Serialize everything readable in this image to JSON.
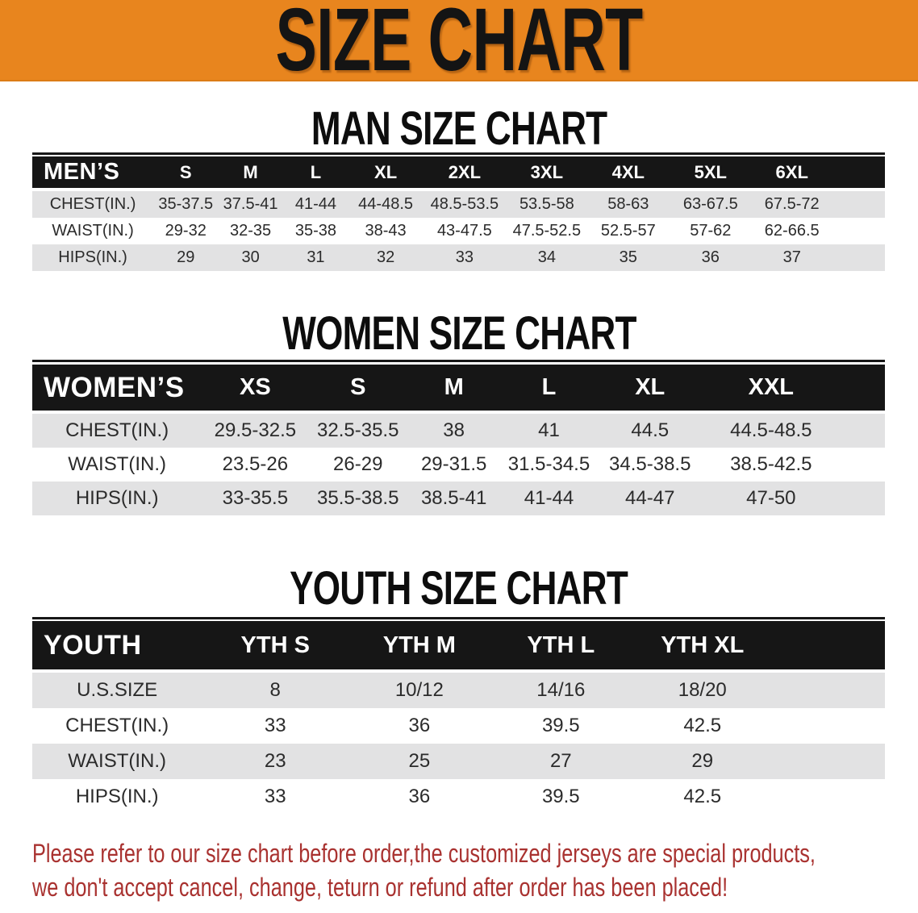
{
  "banner": {
    "title": "SIZE CHART"
  },
  "sections": {
    "men": {
      "heading": "MAN SIZE CHART",
      "header": [
        "MEN’S",
        "S",
        "M",
        "L",
        "XL",
        "2XL",
        "3XL",
        "4XL",
        "5XL",
        "6XL"
      ],
      "rows": [
        {
          "label": "CHEST(IN.)",
          "values": [
            "35-37.5",
            "37.5-41",
            "41-44",
            "44-48.5",
            "48.5-53.5",
            "53.5-58",
            "58-63",
            "63-67.5",
            "67.5-72"
          ]
        },
        {
          "label": "WAIST(IN.)",
          "values": [
            "29-32",
            "32-35",
            "35-38",
            "38-43",
            "43-47.5",
            "47.5-52.5",
            "52.5-57",
            "57-62",
            "62-66.5"
          ]
        },
        {
          "label": "HIPS(IN.)",
          "values": [
            "29",
            "30",
            "31",
            "32",
            "33",
            "34",
            "35",
            "36",
            "37"
          ]
        }
      ]
    },
    "women": {
      "heading": "WOMEN SIZE CHART",
      "header": [
        "WOMEN’S",
        "XS",
        "S",
        "M",
        "L",
        "XL",
        "XXL"
      ],
      "rows": [
        {
          "label": "CHEST(IN.)",
          "values": [
            "29.5-32.5",
            "32.5-35.5",
            "38",
            "41",
            "44.5",
            "44.5-48.5"
          ]
        },
        {
          "label": "WAIST(IN.)",
          "values": [
            "23.5-26",
            "26-29",
            "29-31.5",
            "31.5-34.5",
            "34.5-38.5",
            "38.5-42.5"
          ]
        },
        {
          "label": "HIPS(IN.)",
          "values": [
            "33-35.5",
            "35.5-38.5",
            "38.5-41",
            "41-44",
            "44-47",
            "47-50"
          ]
        }
      ]
    },
    "youth": {
      "heading": "YOUTH SIZE CHART",
      "header": [
        "YOUTH",
        "YTH S",
        "YTH M",
        "YTH L",
        "YTH XL"
      ],
      "rows": [
        {
          "label": "U.S.SIZE",
          "values": [
            "8",
            "10/12",
            "14/16",
            "18/20"
          ]
        },
        {
          "label": "CHEST(IN.)",
          "values": [
            "33",
            "36",
            "39.5",
            "42.5"
          ]
        },
        {
          "label": "WAIST(IN.)",
          "values": [
            "23",
            "25",
            "27",
            "29"
          ]
        },
        {
          "label": "HIPS(IN.)",
          "values": [
            "33",
            "36",
            "39.5",
            "42.5"
          ]
        }
      ]
    }
  },
  "footer": {
    "line1": "Please refer to our size chart before order,the customized jerseys are special products,",
    "line2": "we don't accept cancel, change, teturn or refund after order has been placed!"
  },
  "colors": {
    "banner_bg": "#E8851E",
    "banner_text": "#141414",
    "table_header_bg": "#161616",
    "table_header_text": "#FFFFFF",
    "stripe_gray": "#E2E2E3",
    "cell_text": "#2B2B2B",
    "footer_red": "#A93230"
  }
}
